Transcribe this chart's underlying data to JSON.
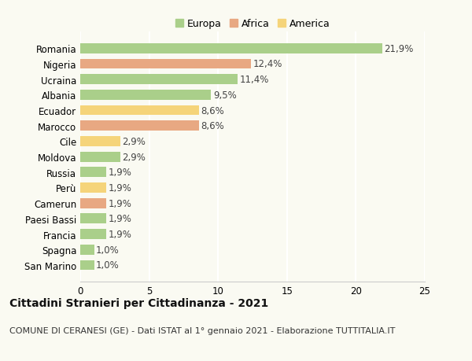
{
  "categories": [
    "Romania",
    "Nigeria",
    "Ucraina",
    "Albania",
    "Ecuador",
    "Marocco",
    "Cile",
    "Moldova",
    "Russia",
    "Perù",
    "Camerun",
    "Paesi Bassi",
    "Francia",
    "Spagna",
    "San Marino"
  ],
  "values": [
    21.9,
    12.4,
    11.4,
    9.5,
    8.6,
    8.6,
    2.9,
    2.9,
    1.9,
    1.9,
    1.9,
    1.9,
    1.9,
    1.0,
    1.0
  ],
  "continents": [
    "Europa",
    "Africa",
    "Europa",
    "Europa",
    "America",
    "Africa",
    "America",
    "Europa",
    "Europa",
    "America",
    "Africa",
    "Europa",
    "Europa",
    "Europa",
    "Europa"
  ],
  "colors": {
    "Europa": "#aacf8a",
    "Africa": "#e8a882",
    "America": "#f5d47a"
  },
  "xlim": [
    0,
    25
  ],
  "xticks": [
    0,
    5,
    10,
    15,
    20,
    25
  ],
  "title": "Cittadini Stranieri per Cittadinanza - 2021",
  "subtitle": "COMUNE DI CERANESI (GE) - Dati ISTAT al 1° gennaio 2021 - Elaborazione TUTTITALIA.IT",
  "background_color": "#fafaf2",
  "grid_color": "#ffffff",
  "bar_height": 0.65,
  "title_fontsize": 10,
  "subtitle_fontsize": 8,
  "tick_fontsize": 8.5,
  "value_fontsize": 8.5,
  "legend_fontsize": 9
}
